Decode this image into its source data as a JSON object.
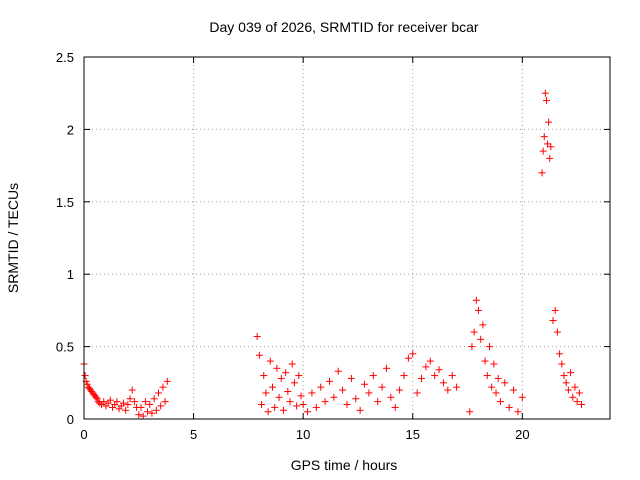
{
  "chart_data": {
    "type": "scatter",
    "title": "Day 039 of 2026, SRMTID for receiver bcar",
    "xlabel": "GPS time / hours",
    "ylabel": "SRMTID / TECUs",
    "xlim": [
      0,
      24
    ],
    "ylim": [
      0,
      2.5
    ],
    "xticks": [
      0,
      5,
      10,
      15,
      20
    ],
    "xtick_labels": [
      "0",
      "5",
      "10",
      "15",
      "20"
    ],
    "yticks": [
      0,
      0.5,
      1,
      1.5,
      2,
      2.5
    ],
    "ytick_labels": [
      "0",
      "0.5",
      "1",
      "1.5",
      "2",
      "2.5"
    ],
    "grid": true,
    "marker": "+",
    "color": "#ff0000",
    "series": [
      {
        "name": "SRMTID",
        "segments": [
          {
            "x": [
              0.0,
              0.05,
              0.1,
              0.15,
              0.2,
              0.25,
              0.3,
              0.35,
              0.4,
              0.45,
              0.5,
              0.55,
              0.6,
              0.65,
              0.7,
              0.8,
              0.9,
              1.0,
              1.1,
              1.2,
              1.3,
              1.4,
              1.5,
              1.6,
              1.7,
              1.8,
              1.9,
              2.0,
              2.1,
              2.2,
              2.3,
              2.4
            ],
            "y": [
              0.38,
              0.3,
              0.26,
              0.24,
              0.22,
              0.21,
              0.2,
              0.19,
              0.18,
              0.17,
              0.16,
              0.15,
              0.14,
              0.12,
              0.11,
              0.1,
              0.12,
              0.09,
              0.11,
              0.13,
              0.08,
              0.1,
              0.12,
              0.07,
              0.09,
              0.11,
              0.06,
              0.1,
              0.14,
              0.2,
              0.12,
              0.08
            ]
          },
          {
            "x": [
              2.5,
              2.6,
              2.7,
              2.8,
              2.9,
              3.0,
              3.1,
              3.2,
              3.3,
              3.4,
              3.5,
              3.6,
              3.7,
              3.8
            ],
            "y": [
              0.03,
              0.08,
              0.02,
              0.12,
              0.05,
              0.1,
              0.04,
              0.14,
              0.06,
              0.18,
              0.09,
              0.22,
              0.12,
              0.26
            ]
          },
          {
            "x": [
              7.9,
              8.0,
              8.1,
              8.2,
              8.3,
              8.4,
              8.5,
              8.6,
              8.7,
              8.8,
              8.9,
              9.0,
              9.1,
              9.2,
              9.3,
              9.4,
              9.5,
              9.6,
              9.7,
              9.8,
              9.9
            ],
            "y": [
              0.57,
              0.44,
              0.1,
              0.3,
              0.18,
              0.05,
              0.4,
              0.22,
              0.08,
              0.35,
              0.15,
              0.28,
              0.06,
              0.32,
              0.19,
              0.12,
              0.38,
              0.25,
              0.09,
              0.3,
              0.16
            ]
          },
          {
            "x": [
              10.0,
              10.2,
              10.4,
              10.6,
              10.8,
              11.0,
              11.2,
              11.4,
              11.6,
              11.8,
              12.0,
              12.2,
              12.4,
              12.6,
              12.8,
              13.0,
              13.2,
              13.4,
              13.6,
              13.8,
              14.0
            ],
            "y": [
              0.1,
              0.05,
              0.18,
              0.08,
              0.22,
              0.12,
              0.26,
              0.15,
              0.33,
              0.2,
              0.1,
              0.28,
              0.14,
              0.06,
              0.24,
              0.18,
              0.3,
              0.12,
              0.22,
              0.35,
              0.15
            ]
          },
          {
            "x": [
              14.2,
              14.4,
              14.6,
              14.8,
              15.0,
              15.2,
              15.4,
              15.6,
              15.8,
              16.0,
              16.2,
              16.4,
              16.6,
              16.8,
              17.0
            ],
            "y": [
              0.08,
              0.2,
              0.3,
              0.42,
              0.45,
              0.18,
              0.28,
              0.36,
              0.4,
              0.3,
              0.34,
              0.25,
              0.2,
              0.3,
              0.22
            ]
          },
          {
            "x": [
              17.6,
              17.7,
              17.8,
              17.9,
              18.0,
              18.1,
              18.2,
              18.3,
              18.4,
              18.5,
              18.6,
              18.7,
              18.8,
              18.9,
              19.0,
              19.2,
              19.4,
              19.6,
              19.8,
              20.0
            ],
            "y": [
              0.05,
              0.5,
              0.6,
              0.82,
              0.75,
              0.55,
              0.65,
              0.4,
              0.3,
              0.5,
              0.22,
              0.38,
              0.18,
              0.28,
              0.12,
              0.25,
              0.08,
              0.2,
              0.05,
              0.15
            ]
          },
          {
            "x": [
              20.9,
              20.95,
              21.0,
              21.05,
              21.1,
              21.15,
              21.2,
              21.25,
              21.3
            ],
            "y": [
              1.7,
              1.85,
              1.95,
              2.25,
              2.2,
              1.9,
              2.05,
              1.8,
              1.88
            ]
          },
          {
            "x": [
              21.4,
              21.5,
              21.6,
              21.7,
              21.8,
              21.9,
              22.0,
              22.1,
              22.2,
              22.3,
              22.4,
              22.5,
              22.6,
              22.7
            ],
            "y": [
              0.68,
              0.75,
              0.6,
              0.45,
              0.38,
              0.3,
              0.25,
              0.2,
              0.32,
              0.15,
              0.22,
              0.12,
              0.18,
              0.1
            ]
          }
        ]
      }
    ]
  }
}
